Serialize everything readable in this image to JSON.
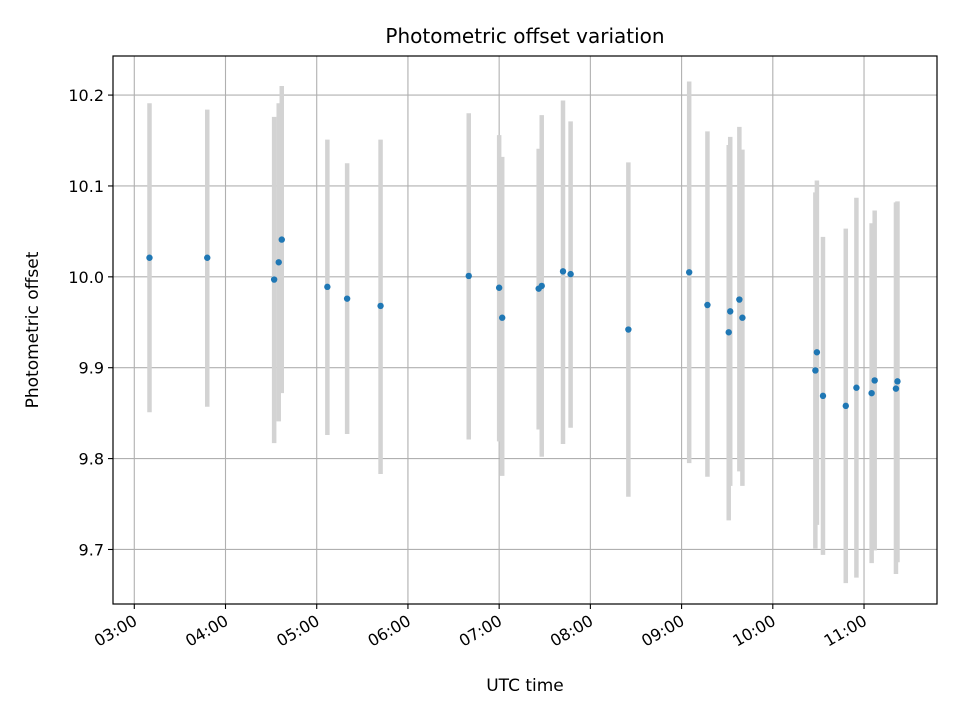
{
  "chart_data": {
    "type": "scatter",
    "title": "Photometric offset variation",
    "xlabel": "UTC time",
    "ylabel": "Photometric offset",
    "x_tick_labels": [
      "03:00",
      "04:00",
      "05:00",
      "06:00",
      "07:00",
      "08:00",
      "09:00",
      "10:00",
      "11:00"
    ],
    "y_tick_labels": [
      "9.7",
      "9.8",
      "9.9",
      "10.0",
      "10.1",
      "10.2"
    ],
    "xlim": [
      "02:46",
      "11:48"
    ],
    "ylim": [
      9.64,
      10.243
    ],
    "grid": true,
    "legend": "none",
    "colors": {
      "points": "#1f77b4",
      "error_bars": "#d3d3d3",
      "grid": "#b0b0b0"
    },
    "points": [
      {
        "x": "03:10",
        "y": 10.021,
        "ylow": 9.851,
        "yhigh": 10.191
      },
      {
        "x": "03:48",
        "y": 10.021,
        "ylow": 9.857,
        "yhigh": 10.184
      },
      {
        "x": "04:32",
        "y": 9.997,
        "ylow": 9.817,
        "yhigh": 10.176
      },
      {
        "x": "04:35",
        "y": 10.016,
        "ylow": 9.841,
        "yhigh": 10.191
      },
      {
        "x": "04:37",
        "y": 10.041,
        "ylow": 9.872,
        "yhigh": 10.21
      },
      {
        "x": "05:07",
        "y": 9.989,
        "ylow": 9.826,
        "yhigh": 10.151
      },
      {
        "x": "05:20",
        "y": 9.976,
        "ylow": 9.827,
        "yhigh": 10.125
      },
      {
        "x": "05:42",
        "y": 9.968,
        "ylow": 9.783,
        "yhigh": 10.151
      },
      {
        "x": "06:40",
        "y": 10.001,
        "ylow": 9.821,
        "yhigh": 10.18
      },
      {
        "x": "07:00",
        "y": 9.988,
        "ylow": 9.819,
        "yhigh": 10.156
      },
      {
        "x": "07:02",
        "y": 9.955,
        "ylow": 9.781,
        "yhigh": 10.132
      },
      {
        "x": "07:26",
        "y": 9.987,
        "ylow": 9.832,
        "yhigh": 10.141
      },
      {
        "x": "07:28",
        "y": 9.99,
        "ylow": 9.802,
        "yhigh": 10.178
      },
      {
        "x": "07:42",
        "y": 10.006,
        "ylow": 9.816,
        "yhigh": 10.194
      },
      {
        "x": "07:47",
        "y": 10.003,
        "ylow": 9.834,
        "yhigh": 10.171
      },
      {
        "x": "08:25",
        "y": 9.942,
        "ylow": 9.758,
        "yhigh": 10.126
      },
      {
        "x": "09:05",
        "y": 10.005,
        "ylow": 9.795,
        "yhigh": 10.215
      },
      {
        "x": "09:17",
        "y": 9.969,
        "ylow": 9.78,
        "yhigh": 10.16
      },
      {
        "x": "09:31",
        "y": 9.939,
        "ylow": 9.732,
        "yhigh": 10.145
      },
      {
        "x": "09:32",
        "y": 9.962,
        "ylow": 9.77,
        "yhigh": 10.154
      },
      {
        "x": "09:38",
        "y": 9.975,
        "ylow": 9.786,
        "yhigh": 10.165
      },
      {
        "x": "09:40",
        "y": 9.955,
        "ylow": 9.77,
        "yhigh": 10.14
      },
      {
        "x": "10:28",
        "y": 9.897,
        "ylow": 9.701,
        "yhigh": 10.093
      },
      {
        "x": "10:29",
        "y": 9.917,
        "ylow": 9.727,
        "yhigh": 10.106
      },
      {
        "x": "10:33",
        "y": 9.869,
        "ylow": 9.694,
        "yhigh": 10.044
      },
      {
        "x": "10:48",
        "y": 9.858,
        "ylow": 9.663,
        "yhigh": 10.053
      },
      {
        "x": "10:55",
        "y": 9.878,
        "ylow": 9.669,
        "yhigh": 10.087
      },
      {
        "x": "11:05",
        "y": 9.872,
        "ylow": 9.685,
        "yhigh": 10.059
      },
      {
        "x": "11:07",
        "y": 9.886,
        "ylow": 9.699,
        "yhigh": 10.073
      },
      {
        "x": "11:21",
        "y": 9.877,
        "ylow": 9.673,
        "yhigh": 10.082
      },
      {
        "x": "11:22",
        "y": 9.885,
        "ylow": 9.686,
        "yhigh": 10.083
      }
    ]
  }
}
